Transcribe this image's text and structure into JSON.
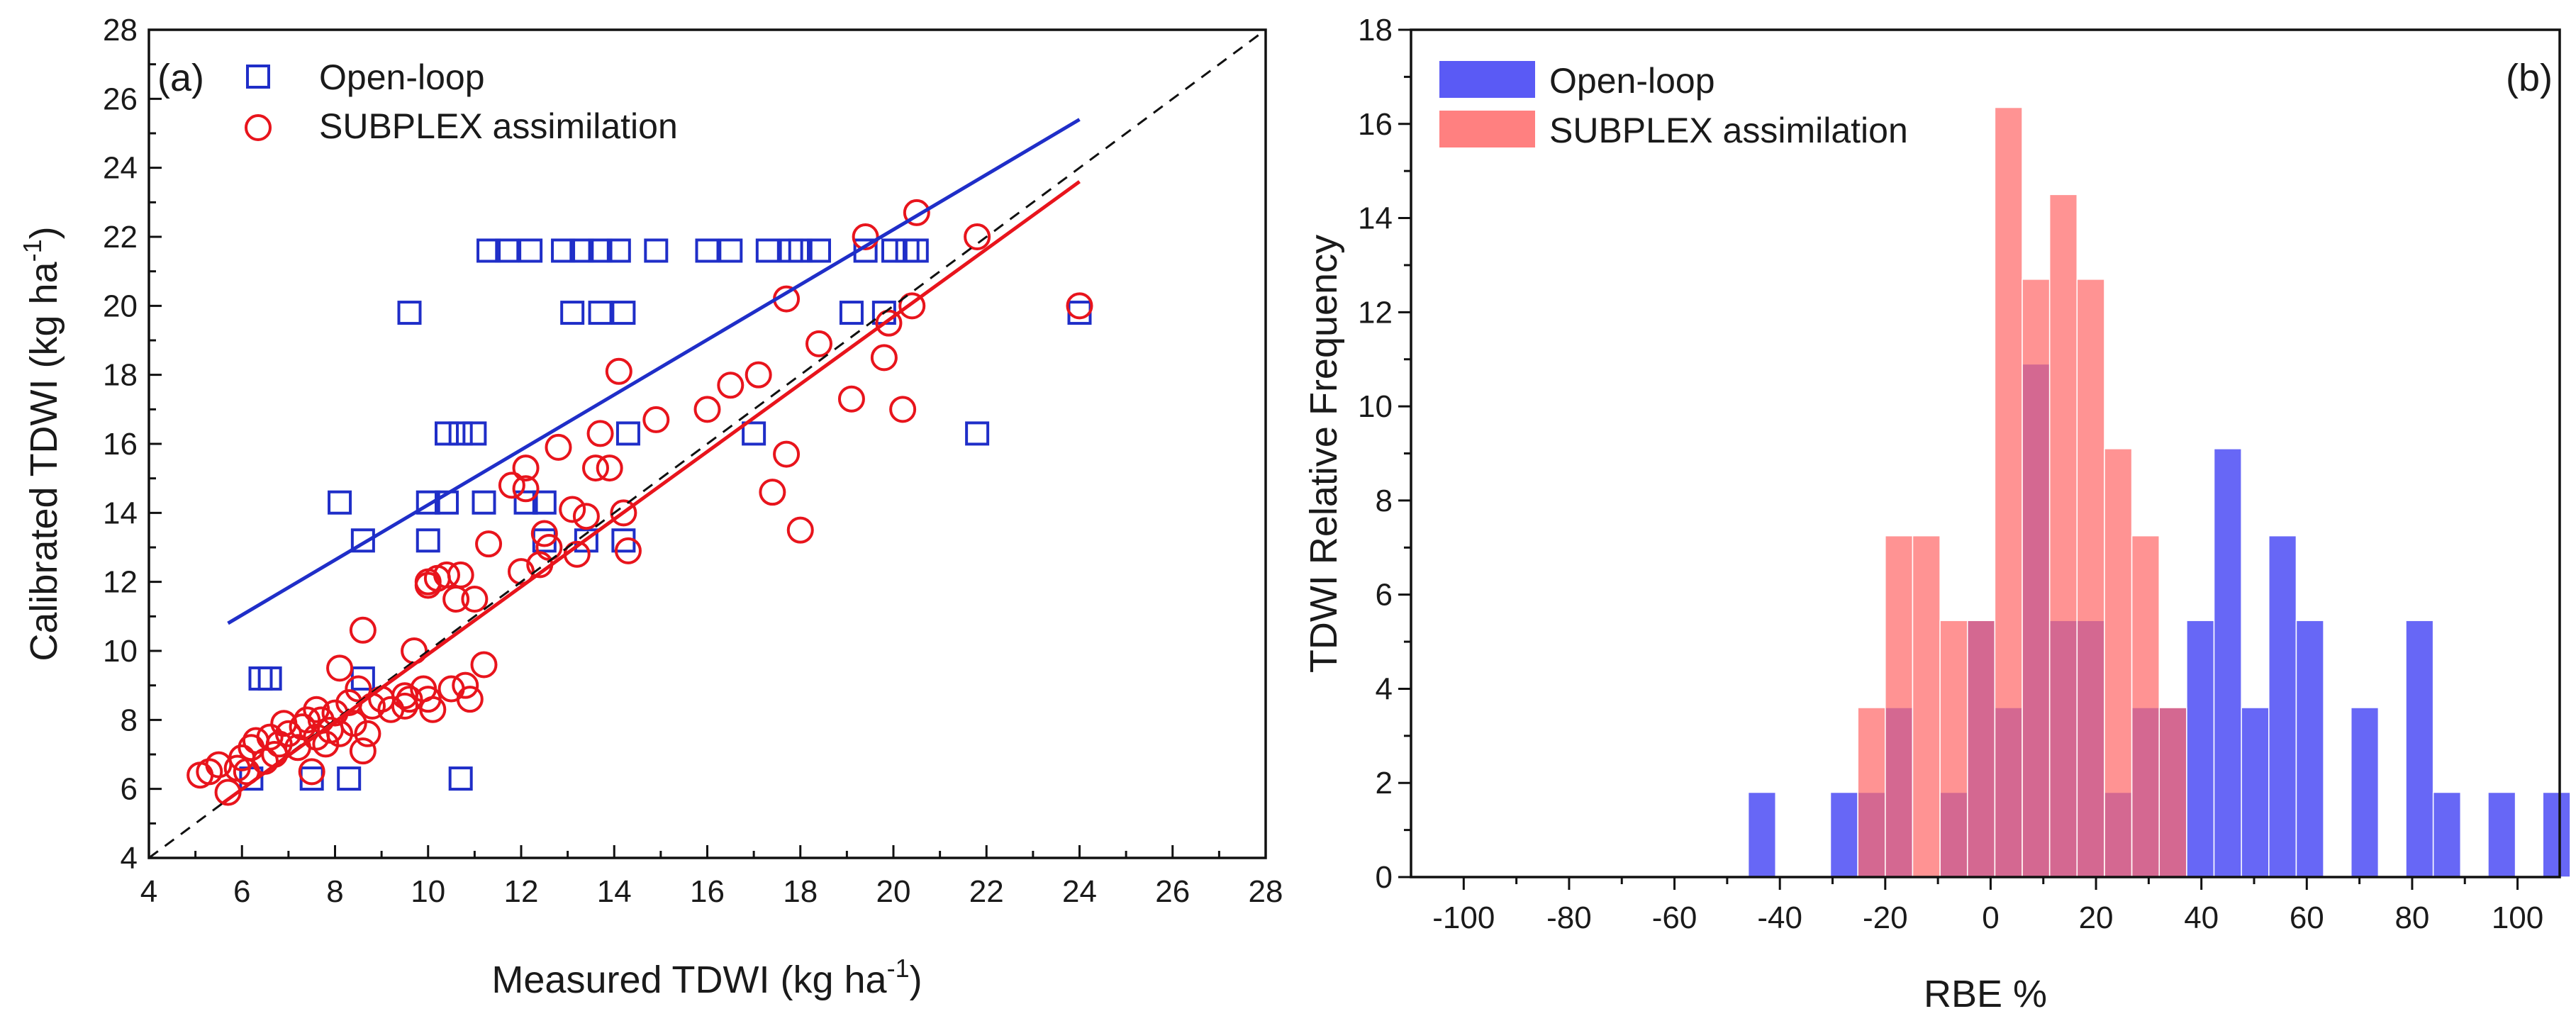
{
  "panel_a_label": "(a)",
  "panel_b_label": "(b)",
  "chart_data": [
    {
      "type": "scatter",
      "panel": "(a)",
      "xlabel": "Measured TDWI (kg ha",
      "ylabel": "Calibrated TDWI (kg ha",
      "unit_superscript": "-1",
      "xlim": [
        4,
        28
      ],
      "ylim": [
        4,
        28
      ],
      "xticks": [
        4,
        6,
        8,
        10,
        12,
        14,
        16,
        18,
        20,
        22,
        24,
        26,
        28
      ],
      "yticks": [
        4,
        6,
        8,
        10,
        12,
        14,
        16,
        18,
        20,
        22,
        24,
        26,
        28
      ],
      "grid": false,
      "legend_position": "top-left",
      "one_to_one_line": true,
      "series": [
        {
          "name": "Open-loop",
          "marker": "square",
          "color": "#1f2ec8",
          "points": [
            [
              11.3,
              21.6
            ],
            [
              11.7,
              21.6
            ],
            [
              12.2,
              21.6
            ],
            [
              12.9,
              21.6
            ],
            [
              13.3,
              21.6
            ],
            [
              13.7,
              21.6
            ],
            [
              14.1,
              21.6
            ],
            [
              14.9,
              21.6
            ],
            [
              16.0,
              21.6
            ],
            [
              16.5,
              21.6
            ],
            [
              17.3,
              21.6
            ],
            [
              17.8,
              21.6
            ],
            [
              18.0,
              21.6
            ],
            [
              18.4,
              21.6
            ],
            [
              19.4,
              21.6
            ],
            [
              20.0,
              21.6
            ],
            [
              20.3,
              21.6
            ],
            [
              20.5,
              21.6
            ],
            [
              9.6,
              19.8
            ],
            [
              13.1,
              19.8
            ],
            [
              13.7,
              19.8
            ],
            [
              14.2,
              19.8
            ],
            [
              19.1,
              19.8
            ],
            [
              19.8,
              19.8
            ],
            [
              24.0,
              19.8
            ],
            [
              10.4,
              16.3
            ],
            [
              10.7,
              16.3
            ],
            [
              11.0,
              16.3
            ],
            [
              14.3,
              16.3
            ],
            [
              17.0,
              16.3
            ],
            [
              21.8,
              16.3
            ],
            [
              8.1,
              14.3
            ],
            [
              10.0,
              14.3
            ],
            [
              10.4,
              14.3
            ],
            [
              11.2,
              14.3
            ],
            [
              12.1,
              14.3
            ],
            [
              12.5,
              14.3
            ],
            [
              8.6,
              13.2
            ],
            [
              10.0,
              13.2
            ],
            [
              12.5,
              13.2
            ],
            [
              13.4,
              13.2
            ],
            [
              14.2,
              13.2
            ],
            [
              6.4,
              9.2
            ],
            [
              6.6,
              9.2
            ],
            [
              8.6,
              9.2
            ],
            [
              6.2,
              6.3
            ],
            [
              7.5,
              6.3
            ],
            [
              8.3,
              6.3
            ],
            [
              10.7,
              6.3
            ]
          ]
        },
        {
          "name": "SUBPLEX assimilation",
          "marker": "circle",
          "color": "#e8141c",
          "points": [
            [
              5.1,
              6.4
            ],
            [
              5.3,
              6.5
            ],
            [
              5.5,
              6.7
            ],
            [
              5.7,
              5.9
            ],
            [
              5.9,
              6.6
            ],
            [
              6.0,
              6.9
            ],
            [
              6.1,
              6.5
            ],
            [
              6.2,
              7.2
            ],
            [
              6.3,
              7.4
            ],
            [
              6.5,
              6.8
            ],
            [
              6.6,
              7.5
            ],
            [
              6.7,
              7.0
            ],
            [
              6.8,
              7.3
            ],
            [
              6.9,
              7.9
            ],
            [
              7.0,
              7.6
            ],
            [
              7.2,
              7.2
            ],
            [
              7.3,
              7.8
            ],
            [
              7.4,
              8.0
            ],
            [
              7.5,
              6.5
            ],
            [
              7.6,
              7.5
            ],
            [
              7.6,
              8.3
            ],
            [
              7.7,
              8.0
            ],
            [
              7.8,
              7.3
            ],
            [
              7.9,
              7.7
            ],
            [
              8.0,
              8.2
            ],
            [
              8.1,
              9.5
            ],
            [
              8.1,
              7.6
            ],
            [
              8.3,
              8.5
            ],
            [
              8.4,
              7.9
            ],
            [
              8.5,
              8.9
            ],
            [
              8.6,
              7.1
            ],
            [
              8.6,
              10.6
            ],
            [
              8.7,
              7.6
            ],
            [
              8.8,
              8.4
            ],
            [
              9.0,
              8.6
            ],
            [
              9.2,
              8.3
            ],
            [
              9.5,
              8.4
            ],
            [
              9.5,
              8.7
            ],
            [
              9.6,
              8.6
            ],
            [
              9.7,
              10.0
            ],
            [
              9.9,
              8.9
            ],
            [
              10.0,
              12.0
            ],
            [
              10.0,
              11.9
            ],
            [
              10.0,
              8.6
            ],
            [
              10.1,
              8.3
            ],
            [
              10.2,
              12.1
            ],
            [
              10.4,
              12.2
            ],
            [
              10.5,
              8.9
            ],
            [
              10.6,
              11.5
            ],
            [
              10.7,
              12.2
            ],
            [
              10.8,
              9.0
            ],
            [
              10.9,
              8.6
            ],
            [
              11.0,
              11.5
            ],
            [
              11.2,
              9.6
            ],
            [
              11.3,
              13.1
            ],
            [
              11.8,
              14.8
            ],
            [
              12.0,
              12.3
            ],
            [
              12.1,
              14.7
            ],
            [
              12.1,
              15.3
            ],
            [
              12.4,
              12.5
            ],
            [
              12.5,
              13.4
            ],
            [
              12.6,
              13.0
            ],
            [
              12.8,
              15.9
            ],
            [
              13.1,
              14.1
            ],
            [
              13.2,
              12.8
            ],
            [
              13.4,
              13.9
            ],
            [
              13.6,
              15.3
            ],
            [
              13.7,
              16.3
            ],
            [
              13.9,
              15.3
            ],
            [
              14.1,
              18.1
            ],
            [
              14.2,
              14.0
            ],
            [
              14.3,
              12.9
            ],
            [
              14.9,
              16.7
            ],
            [
              16.0,
              17.0
            ],
            [
              16.5,
              17.7
            ],
            [
              17.1,
              18.0
            ],
            [
              17.4,
              14.6
            ],
            [
              17.7,
              20.2
            ],
            [
              17.7,
              15.7
            ],
            [
              18.0,
              13.5
            ],
            [
              18.4,
              18.9
            ],
            [
              19.1,
              17.3
            ],
            [
              19.4,
              22.0
            ],
            [
              19.8,
              18.5
            ],
            [
              19.9,
              19.5
            ],
            [
              20.2,
              17.0
            ],
            [
              20.4,
              20.0
            ],
            [
              20.5,
              22.7
            ],
            [
              21.8,
              22.0
            ],
            [
              24.0,
              20.0
            ]
          ]
        }
      ],
      "fit_lines": [
        {
          "name": "Open-loop",
          "color": "#1f2ec8",
          "from": [
            5.7,
            10.8
          ],
          "to": [
            24.0,
            25.4
          ]
        },
        {
          "name": "SUBPLEX assimilation",
          "color": "#e8141c",
          "from": [
            5.6,
            5.6
          ],
          "to": [
            24.0,
            23.6
          ]
        }
      ]
    },
    {
      "type": "bar",
      "panel": "(b)",
      "xlabel": "RBE %",
      "ylabel": "TDWI Relative Frequency",
      "xlim": [
        -110,
        108
      ],
      "ylim": [
        0,
        18
      ],
      "xticks": [
        -100,
        -80,
        -60,
        -40,
        -20,
        0,
        20,
        40,
        60,
        80,
        100
      ],
      "yticks": [
        0,
        2,
        4,
        6,
        8,
        10,
        12,
        14,
        16,
        18
      ],
      "grid": false,
      "legend_position": "top-left",
      "bin_width": 5.2,
      "series": [
        {
          "name": "Open-loop",
          "color": "#5a5af5",
          "bins": [
            [
              -43.4,
              1.8
            ],
            [
              -27.8,
              1.8
            ],
            [
              -22.6,
              1.8
            ],
            [
              -17.4,
              3.6
            ],
            [
              -7.0,
              1.8
            ],
            [
              -1.8,
              5.45
            ],
            [
              3.4,
              3.6
            ],
            [
              8.6,
              10.9
            ],
            [
              13.8,
              5.45
            ],
            [
              19.0,
              5.45
            ],
            [
              24.2,
              1.8
            ],
            [
              29.4,
              3.6
            ],
            [
              34.6,
              3.6
            ],
            [
              39.8,
              5.45
            ],
            [
              45.0,
              9.1
            ],
            [
              50.2,
              3.6
            ],
            [
              55.4,
              7.25
            ],
            [
              60.6,
              5.45
            ],
            [
              71.0,
              3.6
            ],
            [
              81.4,
              5.45
            ],
            [
              86.6,
              1.8
            ],
            [
              97.0,
              1.8
            ],
            [
              107.4,
              1.8
            ]
          ]
        },
        {
          "name": "SUBPLEX assimilation",
          "color": "#ff6a6a",
          "bins": [
            [
              -22.6,
              3.6
            ],
            [
              -17.4,
              7.25
            ],
            [
              -12.2,
              7.25
            ],
            [
              -7.0,
              5.45
            ],
            [
              -1.8,
              5.45
            ],
            [
              3.4,
              16.35
            ],
            [
              8.6,
              12.7
            ],
            [
              13.8,
              14.5
            ],
            [
              19.0,
              12.7
            ],
            [
              24.2,
              9.1
            ],
            [
              29.4,
              7.25
            ],
            [
              34.6,
              3.6
            ]
          ]
        }
      ]
    }
  ]
}
